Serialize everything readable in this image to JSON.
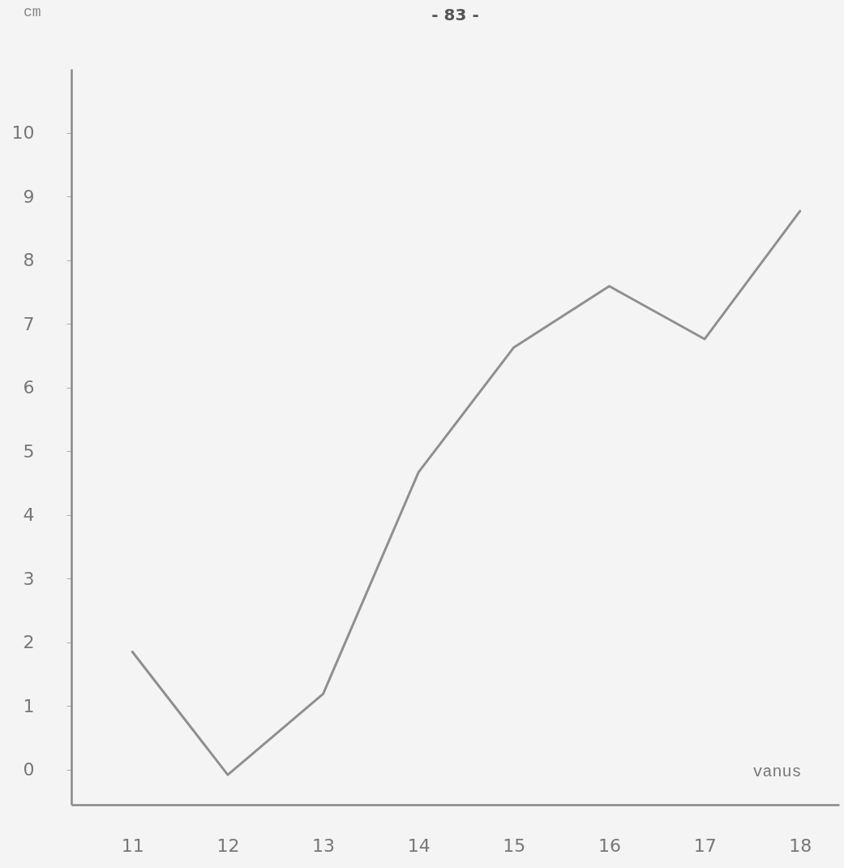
{
  "chart_data": {
    "type": "line",
    "title": "- 83 -",
    "xlabel": "vanus",
    "ylabel": "cm",
    "x": [
      11,
      12,
      13,
      14,
      15,
      16,
      17,
      18
    ],
    "series": [
      {
        "color": "#8f8f8f",
        "values": [
          1.85,
          -0.08,
          1.19,
          4.67,
          6.63,
          7.59,
          6.76,
          8.77
        ]
      }
    ],
    "xlim": [
      10.36,
      18.41
    ],
    "xticks": [
      11,
      12,
      13,
      14,
      15,
      16,
      17,
      18
    ],
    "ylim": [
      -0.55,
      11
    ],
    "yticks": [
      0,
      1,
      2,
      3,
      4,
      5,
      6,
      7,
      8,
      9,
      10
    ],
    "grid": false,
    "marker": "none",
    "line_style": "solid"
  }
}
